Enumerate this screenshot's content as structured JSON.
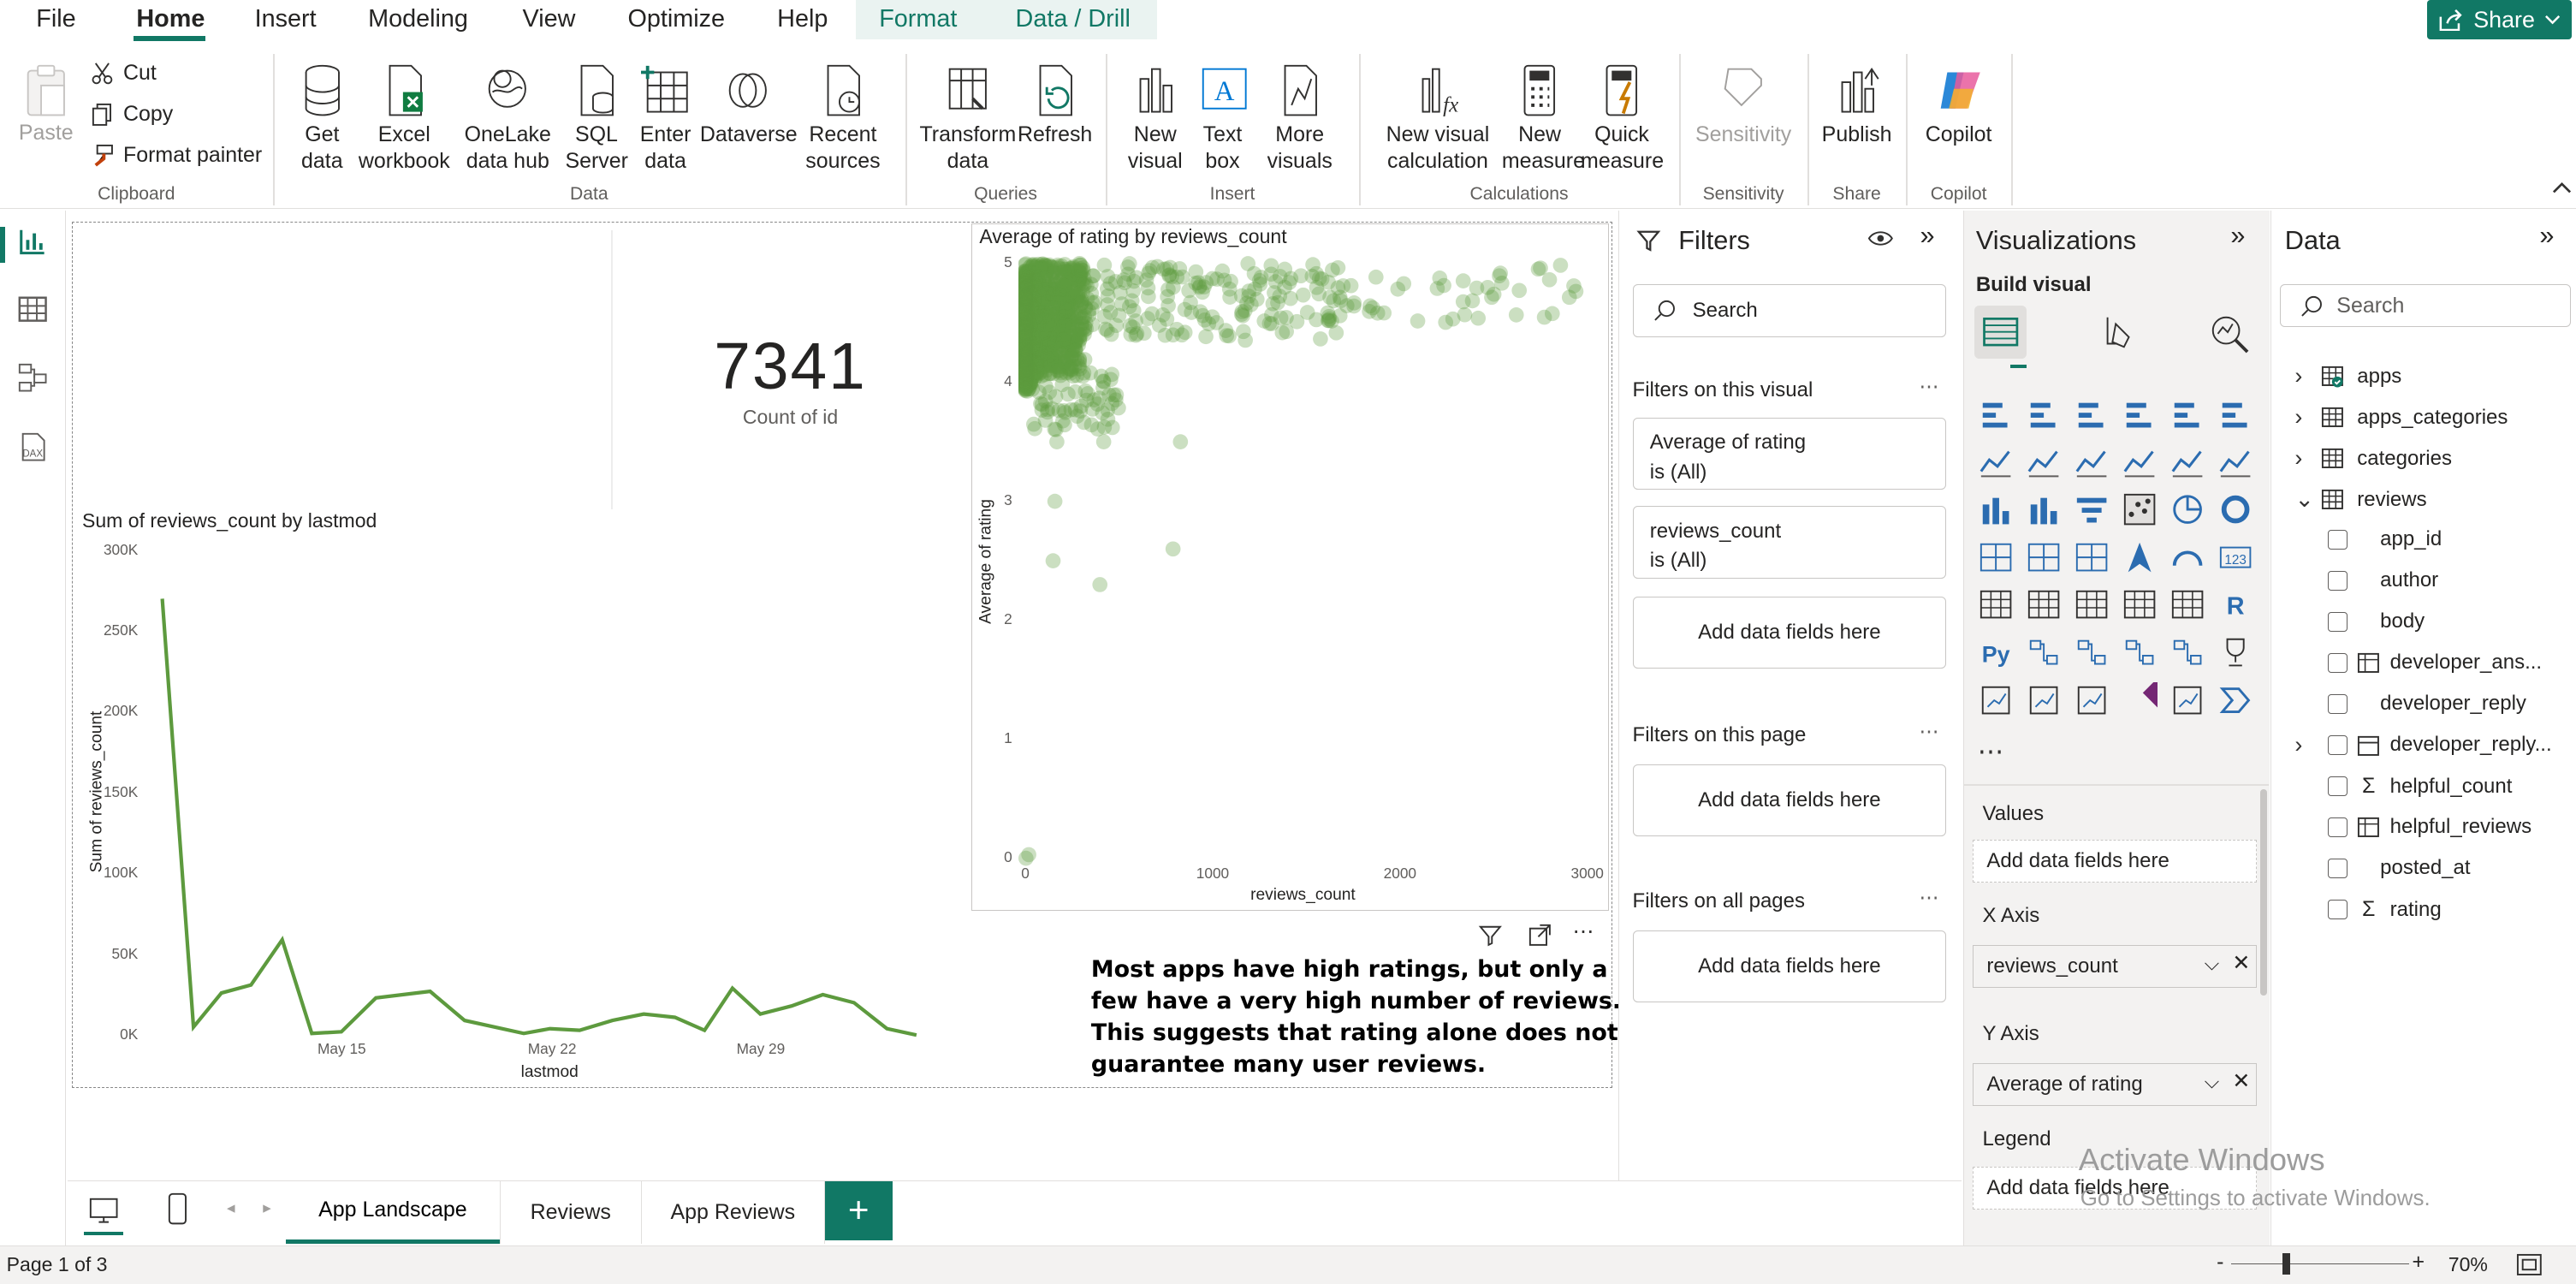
{
  "menu": {
    "file": "File",
    "home": "Home",
    "insert": "Insert",
    "modeling": "Modeling",
    "view": "View",
    "optimize": "Optimize",
    "help": "Help",
    "format": "Format",
    "data_drill": "Data / Drill",
    "share": "Share"
  },
  "ribbon": {
    "paste": "Paste",
    "cut": "Cut",
    "copy": "Copy",
    "format_painter": "Format painter",
    "get_data_1": "Get",
    "get_data_2": "data",
    "excel_1": "Excel",
    "excel_2": "workbook",
    "onelake_1": "OneLake",
    "onelake_2": "data hub",
    "sql_1": "SQL",
    "sql_2": "Server",
    "enter_1": "Enter",
    "enter_2": "data",
    "dataverse": "Dataverse",
    "recent_1": "Recent",
    "recent_2": "sources",
    "transform_1": "Transform",
    "transform_2": "data",
    "refresh": "Refresh",
    "newvisual_1": "New",
    "newvisual_2": "visual",
    "textbox_1": "Text",
    "textbox_2": "box",
    "more_1": "More",
    "more_2": "visuals",
    "newcalc_1": "New visual",
    "newcalc_2": "calculation",
    "newmeasure_1": "New",
    "newmeasure_2": "measure",
    "quick_1": "Quick",
    "quick_2": "measure",
    "sensitivity": "Sensitivity",
    "publish": "Publish",
    "copilot": "Copilot",
    "groups": {
      "clipboard": "Clipboard",
      "data": "Data",
      "queries": "Queries",
      "insert": "Insert",
      "calculations": "Calculations",
      "sensitivity": "Sensitivity",
      "share": "Share",
      "copilot": "Copilot"
    }
  },
  "card": {
    "value": "7341",
    "label": "Count of id"
  },
  "line_chart": {
    "title": "Sum of reviews_count by lastmod",
    "xlabel": "lastmod",
    "ylabel": "Sum of reviews_count",
    "yticks": [
      "300K",
      "250K",
      "200K",
      "150K",
      "100K",
      "50K",
      "0K"
    ],
    "xticks": [
      "May 15",
      "May 22",
      "May 29"
    ]
  },
  "scatter": {
    "title": "Average of rating by reviews_count",
    "xlabel": "reviews_count",
    "ylabel": "Average of rating",
    "yticks": [
      "5",
      "4",
      "3",
      "2",
      "1",
      "0"
    ],
    "xticks": [
      "0",
      "1000",
      "2000",
      "3000"
    ]
  },
  "textbox": {
    "line1": "Most apps have high ratings, but only a",
    "line2": "few have a very high number of reviews.",
    "line3": "This suggests that rating alone does not",
    "line4": "guarantee many user reviews."
  },
  "chart_data": [
    {
      "type": "line",
      "title": "Sum of reviews_count by lastmod",
      "xlabel": "lastmod",
      "ylabel": "Sum of reviews_count",
      "ylim": [
        0,
        300000
      ],
      "x": [
        "May 9",
        "May 10",
        "May 11",
        "May 12",
        "May 13",
        "May 14",
        "May 15",
        "May 16",
        "May 18",
        "May 19",
        "May 20",
        "May 21",
        "May 22",
        "May 23",
        "May 24",
        "May 25",
        "May 26",
        "May 27",
        "May 28",
        "May 29",
        "May 30",
        "May 31",
        "Jun 1",
        "Jun 2"
      ],
      "series": [
        {
          "values": [
            270000,
            5000,
            26000,
            31000,
            59000,
            1000,
            2000,
            23000,
            27000,
            9000,
            1000,
            4000,
            3000,
            9000,
            13000,
            11000,
            3000,
            29000,
            13000,
            18000,
            25000,
            20000,
            4000,
            0
          ]
        }
      ]
    },
    {
      "type": "scatter",
      "title": "Average of rating by reviews_count",
      "xlabel": "reviews_count",
      "ylabel": "Average of rating",
      "xlim": [
        0,
        3000
      ],
      "ylim": [
        0,
        5
      ]
    }
  ],
  "filters": {
    "title": "Filters",
    "search": "Search",
    "on_visual": "Filters on this visual",
    "f1_name": "Average of rating",
    "f1_state": "is (All)",
    "f2_name": "reviews_count",
    "f2_state": "is (All)",
    "add": "Add data fields here",
    "on_page": "Filters on this page",
    "on_all": "Filters on all pages"
  },
  "viz": {
    "title": "Visualizations",
    "build": "Build visual",
    "values": "Values",
    "xaxis": "X Axis",
    "xfield": "reviews_count",
    "yaxis": "Y Axis",
    "yfield": "Average of rating",
    "legend": "Legend",
    "add": "Add data fields here"
  },
  "data": {
    "title": "Data",
    "search": "Search",
    "tables": [
      "apps",
      "apps_categories",
      "categories",
      "reviews"
    ],
    "fields": [
      "app_id",
      "author",
      "body",
      "developer_ans...",
      "developer_reply",
      "developer_reply...",
      "helpful_count",
      "helpful_reviews",
      "posted_at",
      "rating"
    ]
  },
  "pages": {
    "tab1": "App Landscape",
    "tab2": "Reviews",
    "tab3": "App Reviews",
    "add": "+"
  },
  "status": {
    "page": "Page 1 of 3",
    "zoom": "70%"
  },
  "watermark": {
    "line1": "Activate Windows",
    "line2": "Go to Settings to activate Windows."
  }
}
